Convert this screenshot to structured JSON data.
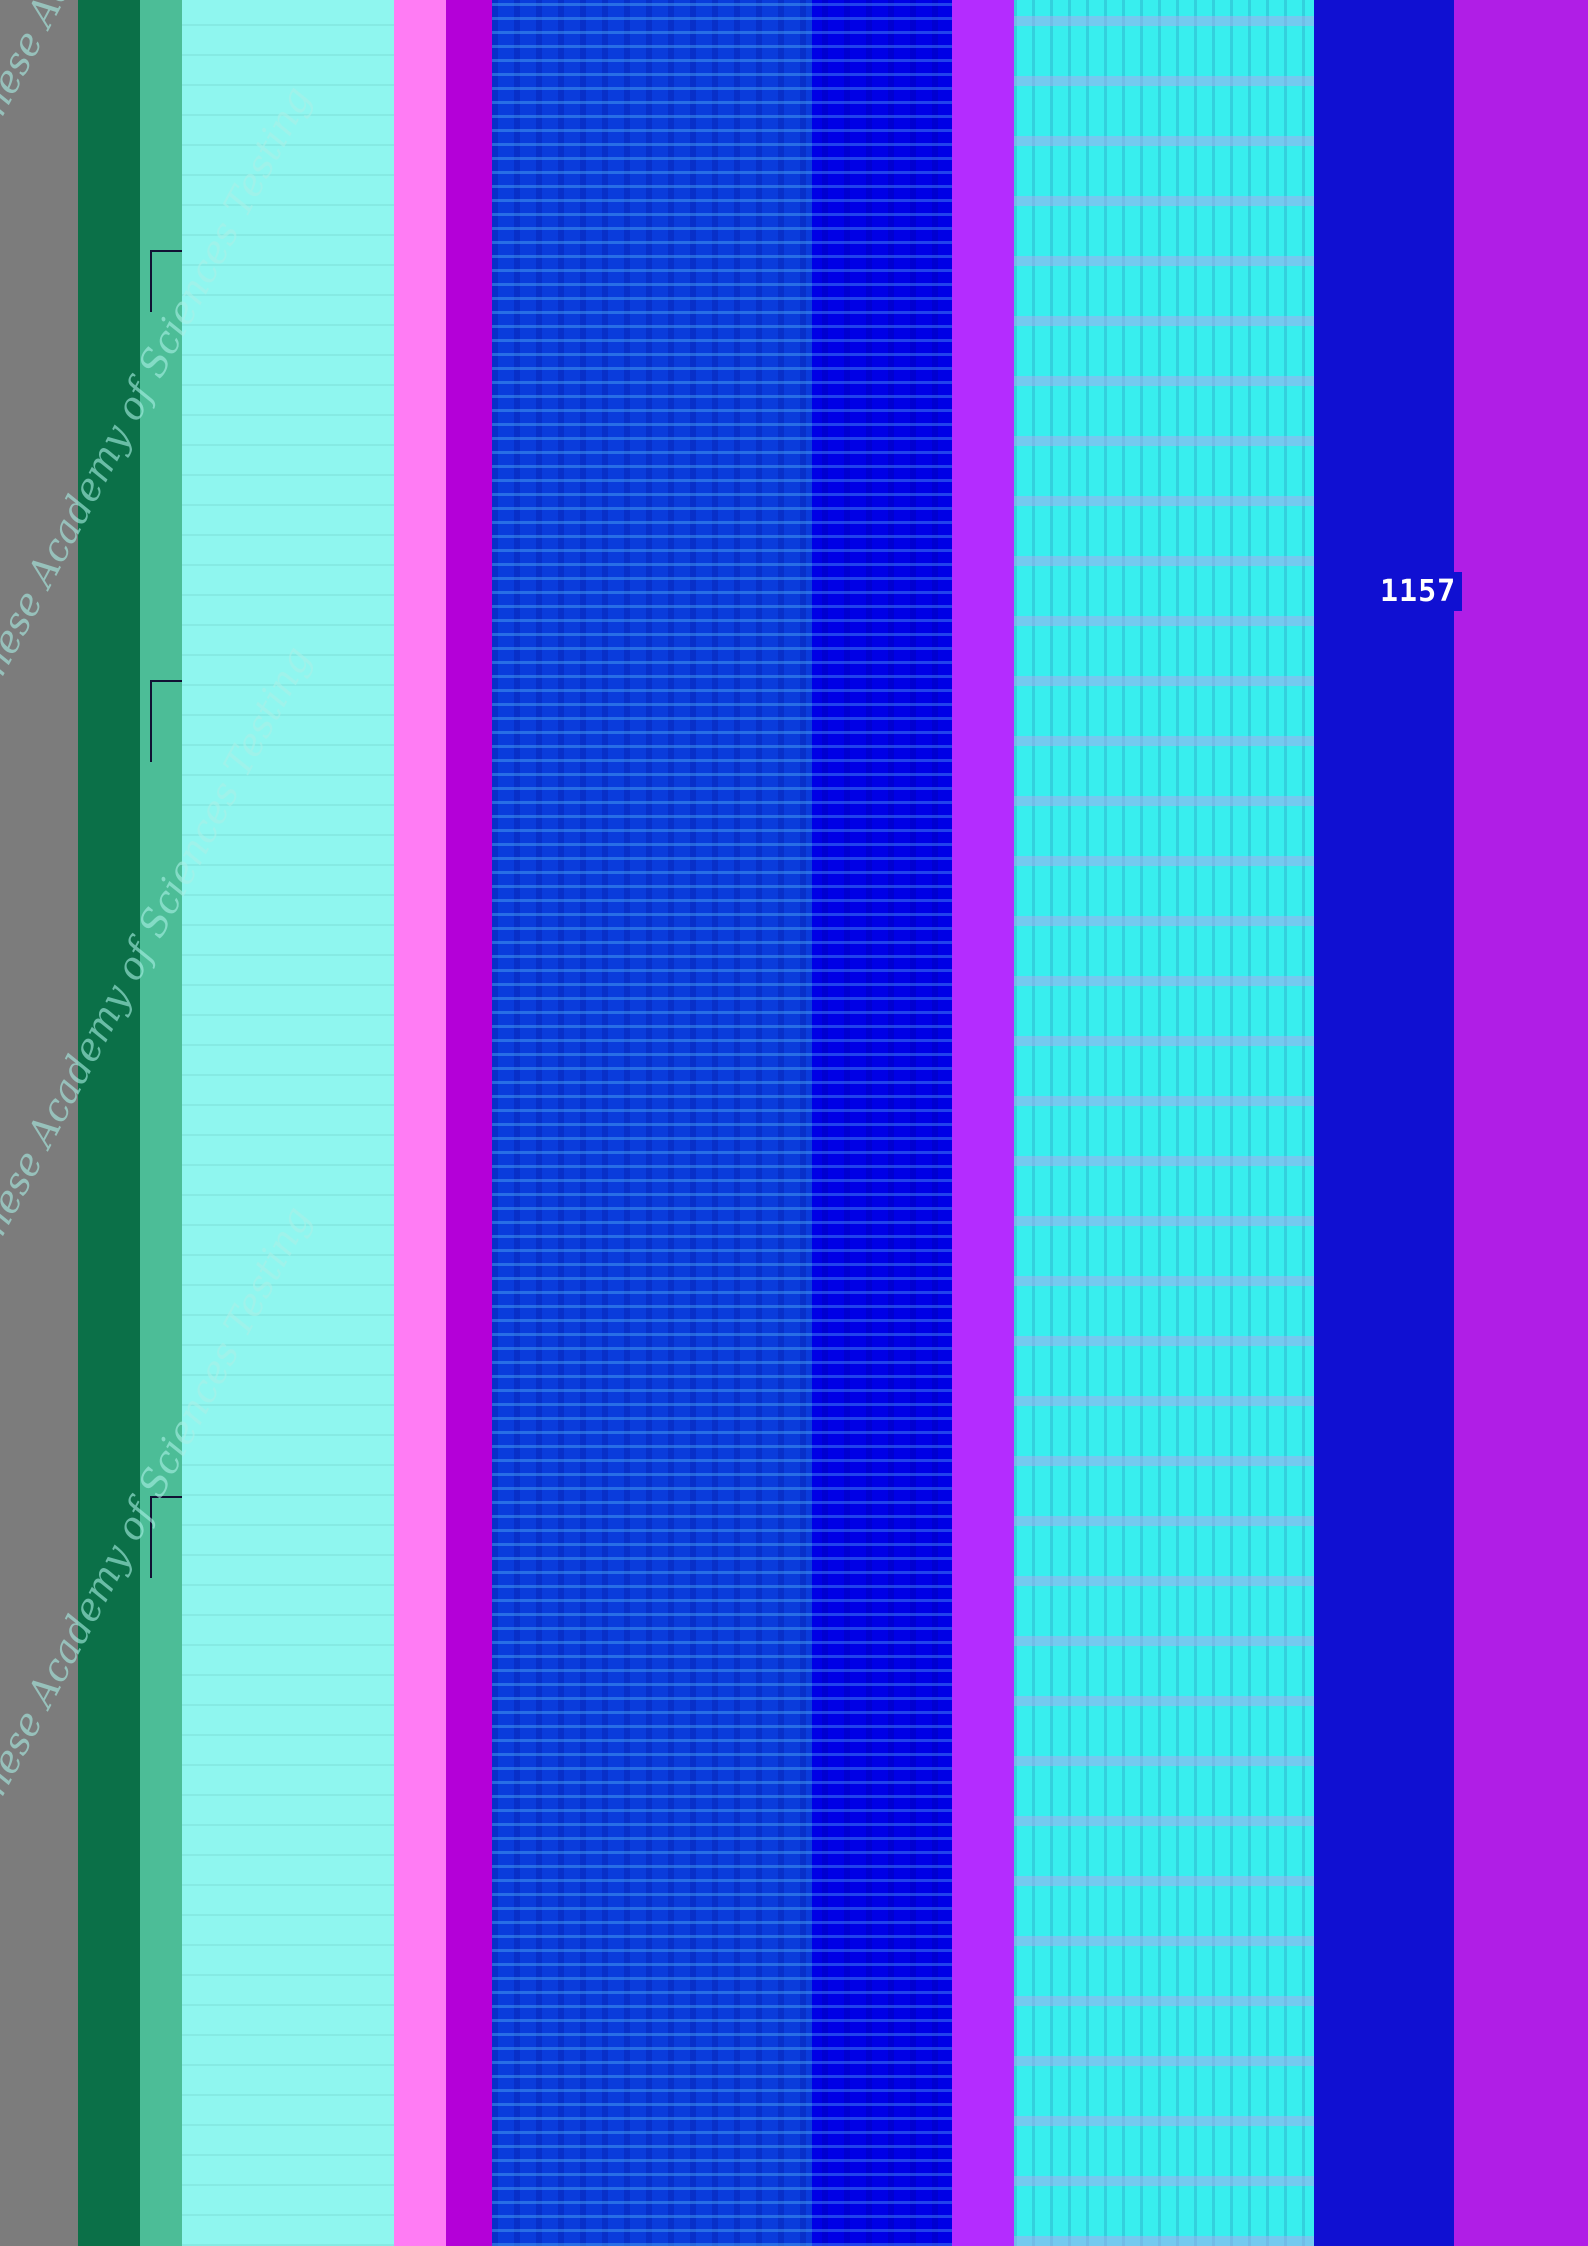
{
  "labels": {
    "l1": "",
    "l2": "",
    "l3": "",
    "l4": "1157"
  },
  "watermark": "Chinese Academy of Sciences Testing",
  "colors": {
    "green": "#0b7048",
    "cyan": "#8ff6ef",
    "pink": "#ff7cf4",
    "blue": "#0a3cdc",
    "magenta": "#b01ee6"
  }
}
